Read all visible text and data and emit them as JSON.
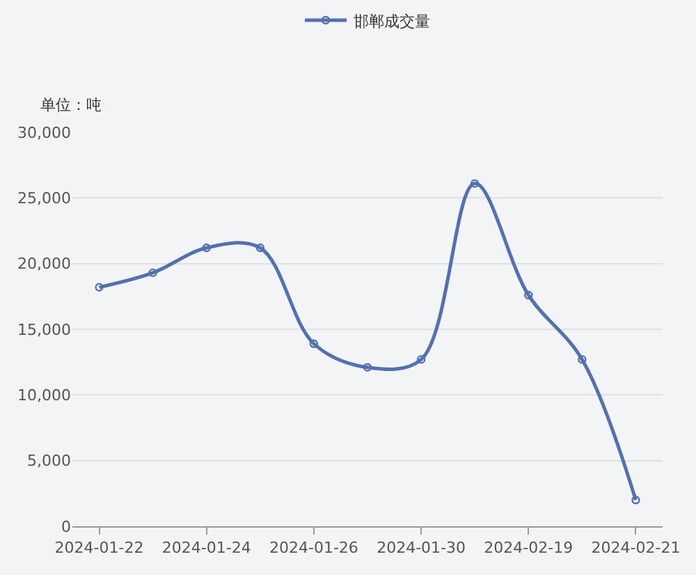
{
  "chart_data": {
    "type": "line",
    "ylabel": "单位：吨",
    "categories": [
      "2024-01-22",
      null,
      "2024-01-24",
      null,
      "2024-01-26",
      null,
      "2024-01-30",
      null,
      "2024-02-19",
      null,
      "2024-02-21"
    ],
    "series": [
      {
        "name": "邯郸成交量",
        "color": "#5470b0",
        "values": [
          18200,
          19300,
          21200,
          21200,
          13900,
          12100,
          12700,
          26100,
          17600,
          12700,
          2000
        ]
      }
    ],
    "ylim": [
      0,
      30000
    ],
    "yticks": [
      {
        "value": 0,
        "label": "0"
      },
      {
        "value": 5000,
        "label": "5,000"
      },
      {
        "value": 10000,
        "label": "10,000"
      },
      {
        "value": 15000,
        "label": "15,000"
      },
      {
        "value": 20000,
        "label": "20,000"
      },
      {
        "value": 25000,
        "label": "25,000"
      },
      {
        "value": 30000,
        "label": "30,000"
      }
    ],
    "grid": "y",
    "legend": "top",
    "marker": "circle",
    "line_style": "solid"
  }
}
